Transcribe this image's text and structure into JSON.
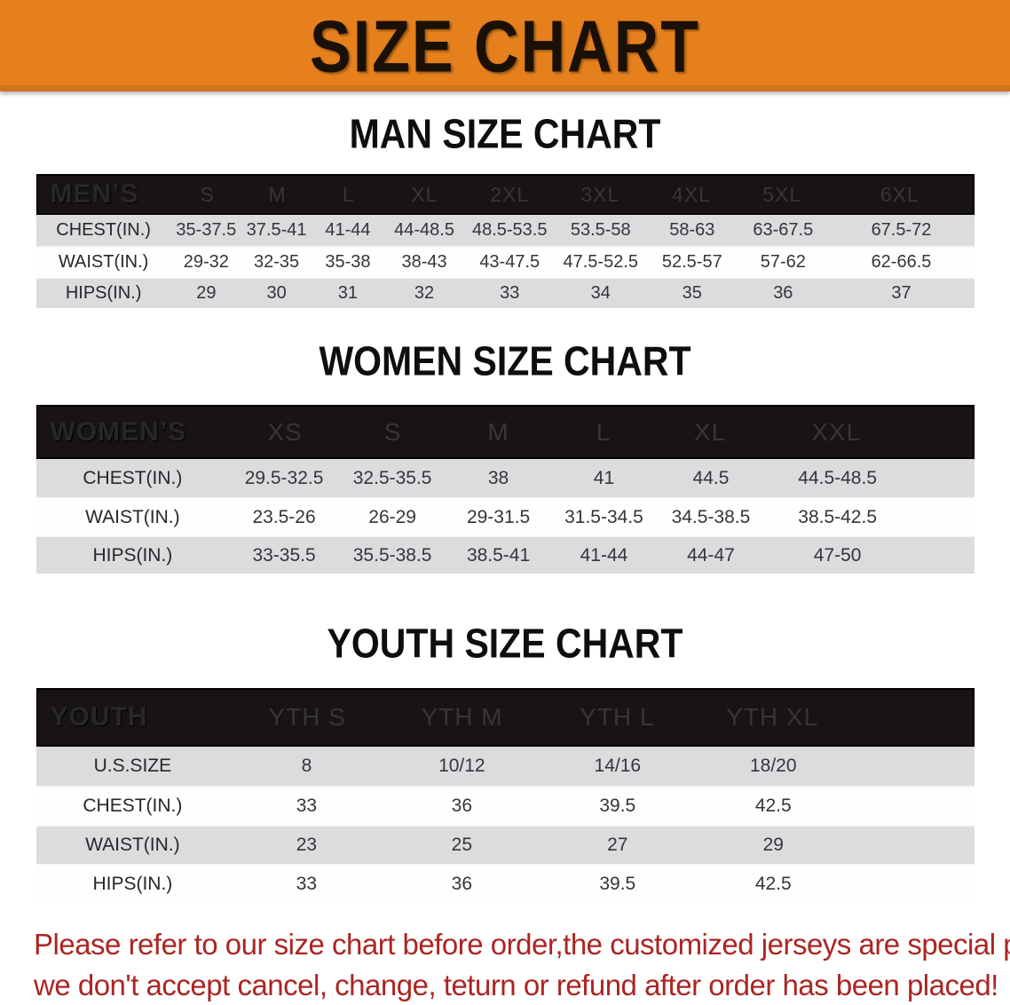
{
  "banner": {
    "title": "SIZE CHART"
  },
  "colors": {
    "banner_bg": "#e5801c",
    "banner_text": "#1b1006",
    "bar_bg": "#181314",
    "row_gray": "#dcdcdf",
    "warn_red": "#ab2522"
  },
  "sections": {
    "men": {
      "heading": "MAN SIZE CHART",
      "header_label": "MEN’S",
      "sizes": [
        "S",
        "M",
        "L",
        "XL",
        "2XL",
        "3XL",
        "4XL",
        "5XL",
        "6XL"
      ],
      "rows": [
        {
          "label": "CHEST(IN.)",
          "values": [
            "35-37.5",
            "37.5-41",
            "41-44",
            "44-48.5",
            "48.5-53.5",
            "53.5-58",
            "58-63",
            "63-67.5",
            "67.5-72"
          ]
        },
        {
          "label": "WAIST(IN.)",
          "values": [
            "29-32",
            "32-35",
            "35-38",
            "38-43",
            "43-47.5",
            "47.5-52.5",
            "52.5-57",
            "57-62",
            "62-66.5"
          ]
        },
        {
          "label": "HIPS(IN.)",
          "values": [
            "29",
            "30",
            "31",
            "32",
            "33",
            "34",
            "35",
            "36",
            "37"
          ]
        }
      ]
    },
    "women": {
      "heading": "WOMEN SIZE CHART",
      "header_label": "WOMEN’S",
      "sizes": [
        "XS",
        "S",
        "M",
        "L",
        "XL",
        "XXL"
      ],
      "rows": [
        {
          "label": "CHEST(IN.)",
          "values": [
            "29.5-32.5",
            "32.5-35.5",
            "38",
            "41",
            "44.5",
            "44.5-48.5"
          ]
        },
        {
          "label": "WAIST(IN.)",
          "values": [
            "23.5-26",
            "26-29",
            "29-31.5",
            "31.5-34.5",
            "34.5-38.5",
            "38.5-42.5"
          ]
        },
        {
          "label": "HIPS(IN.)",
          "values": [
            "33-35.5",
            "35.5-38.5",
            "38.5-41",
            "41-44",
            "44-47",
            "47-50"
          ]
        }
      ]
    },
    "youth": {
      "heading": "YOUTH SIZE CHART",
      "header_label": "YOUTH",
      "sizes": [
        "YTH S",
        "YTH M",
        "YTH L",
        "YTH XL"
      ],
      "rows": [
        {
          "label": "U.S.SIZE",
          "values": [
            "8",
            "10/12",
            "14/16",
            "18/20"
          ]
        },
        {
          "label": "CHEST(IN.)",
          "values": [
            "33",
            "36",
            "39.5",
            "42.5"
          ]
        },
        {
          "label": "WAIST(IN.)",
          "values": [
            "23",
            "25",
            "27",
            "29"
          ]
        },
        {
          "label": "HIPS(IN.)",
          "values": [
            "33",
            "36",
            "39.5",
            "42.5"
          ]
        }
      ]
    }
  },
  "disclaimer": {
    "line1": "Please refer to our size chart before order,the customized jerseys are special products,",
    "line2": "we don't accept cancel, change, teturn or refund after order has been placed!"
  }
}
